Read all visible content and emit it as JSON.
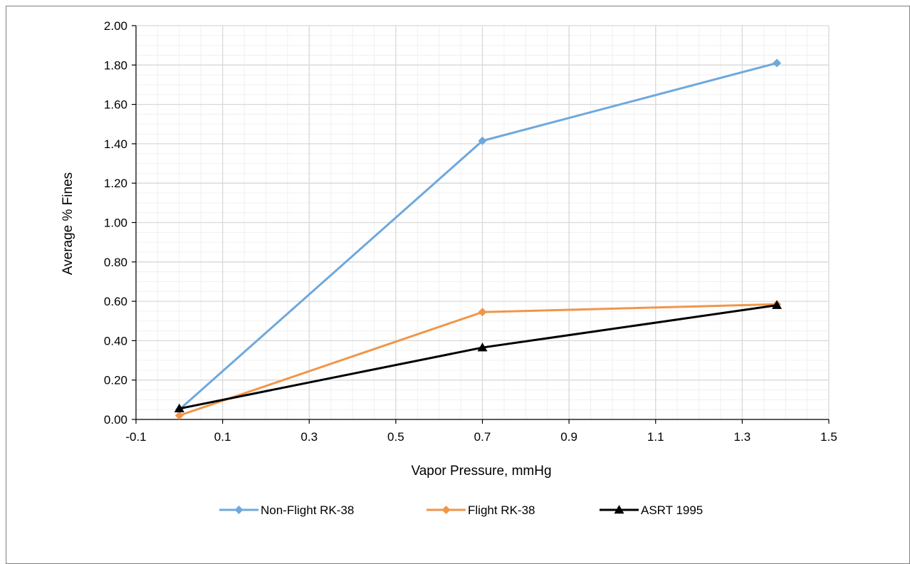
{
  "chart_data": {
    "type": "line",
    "title": "",
    "xlabel": "Vapor Pressure, mmHg",
    "ylabel": "Average % Fines",
    "xlim": [
      -0.1,
      1.5
    ],
    "ylim": [
      0,
      2
    ],
    "xticks": [
      -0.1,
      0.1,
      0.3,
      0.5,
      0.7,
      0.9,
      1.1,
      1.3,
      1.5
    ],
    "yticks": [
      0,
      0.2,
      0.4,
      0.6,
      0.8,
      1.0,
      1.2,
      1.4,
      1.6,
      1.8,
      2.0
    ],
    "xtick_labels": [
      "-0.1",
      "0.1",
      "0.3",
      "0.5",
      "0.7",
      "0.9",
      "1.1",
      "1.3",
      "1.5"
    ],
    "ytick_labels": [
      "0.00",
      "0.20",
      "0.40",
      "0.60",
      "0.80",
      "1.00",
      "1.20",
      "1.40",
      "1.60",
      "1.80",
      "2.00"
    ],
    "grid": true,
    "legend_position": "bottom",
    "series": [
      {
        "name": "Non-Flight RK-38",
        "color": "#6fa8dc",
        "marker": "diamond",
        "x": [
          0.0,
          0.7,
          1.38
        ],
        "y": [
          0.05,
          1.415,
          1.81
        ]
      },
      {
        "name": "Flight RK-38",
        "color": "#f0964a",
        "marker": "diamond",
        "x": [
          0.0,
          0.7,
          1.38
        ],
        "y": [
          0.02,
          0.545,
          0.585
        ]
      },
      {
        "name": "ASRT 1995",
        "color": "#000000",
        "marker": "triangle",
        "x": [
          0.0,
          0.7,
          1.38
        ],
        "y": [
          0.055,
          0.365,
          0.58
        ]
      }
    ]
  }
}
